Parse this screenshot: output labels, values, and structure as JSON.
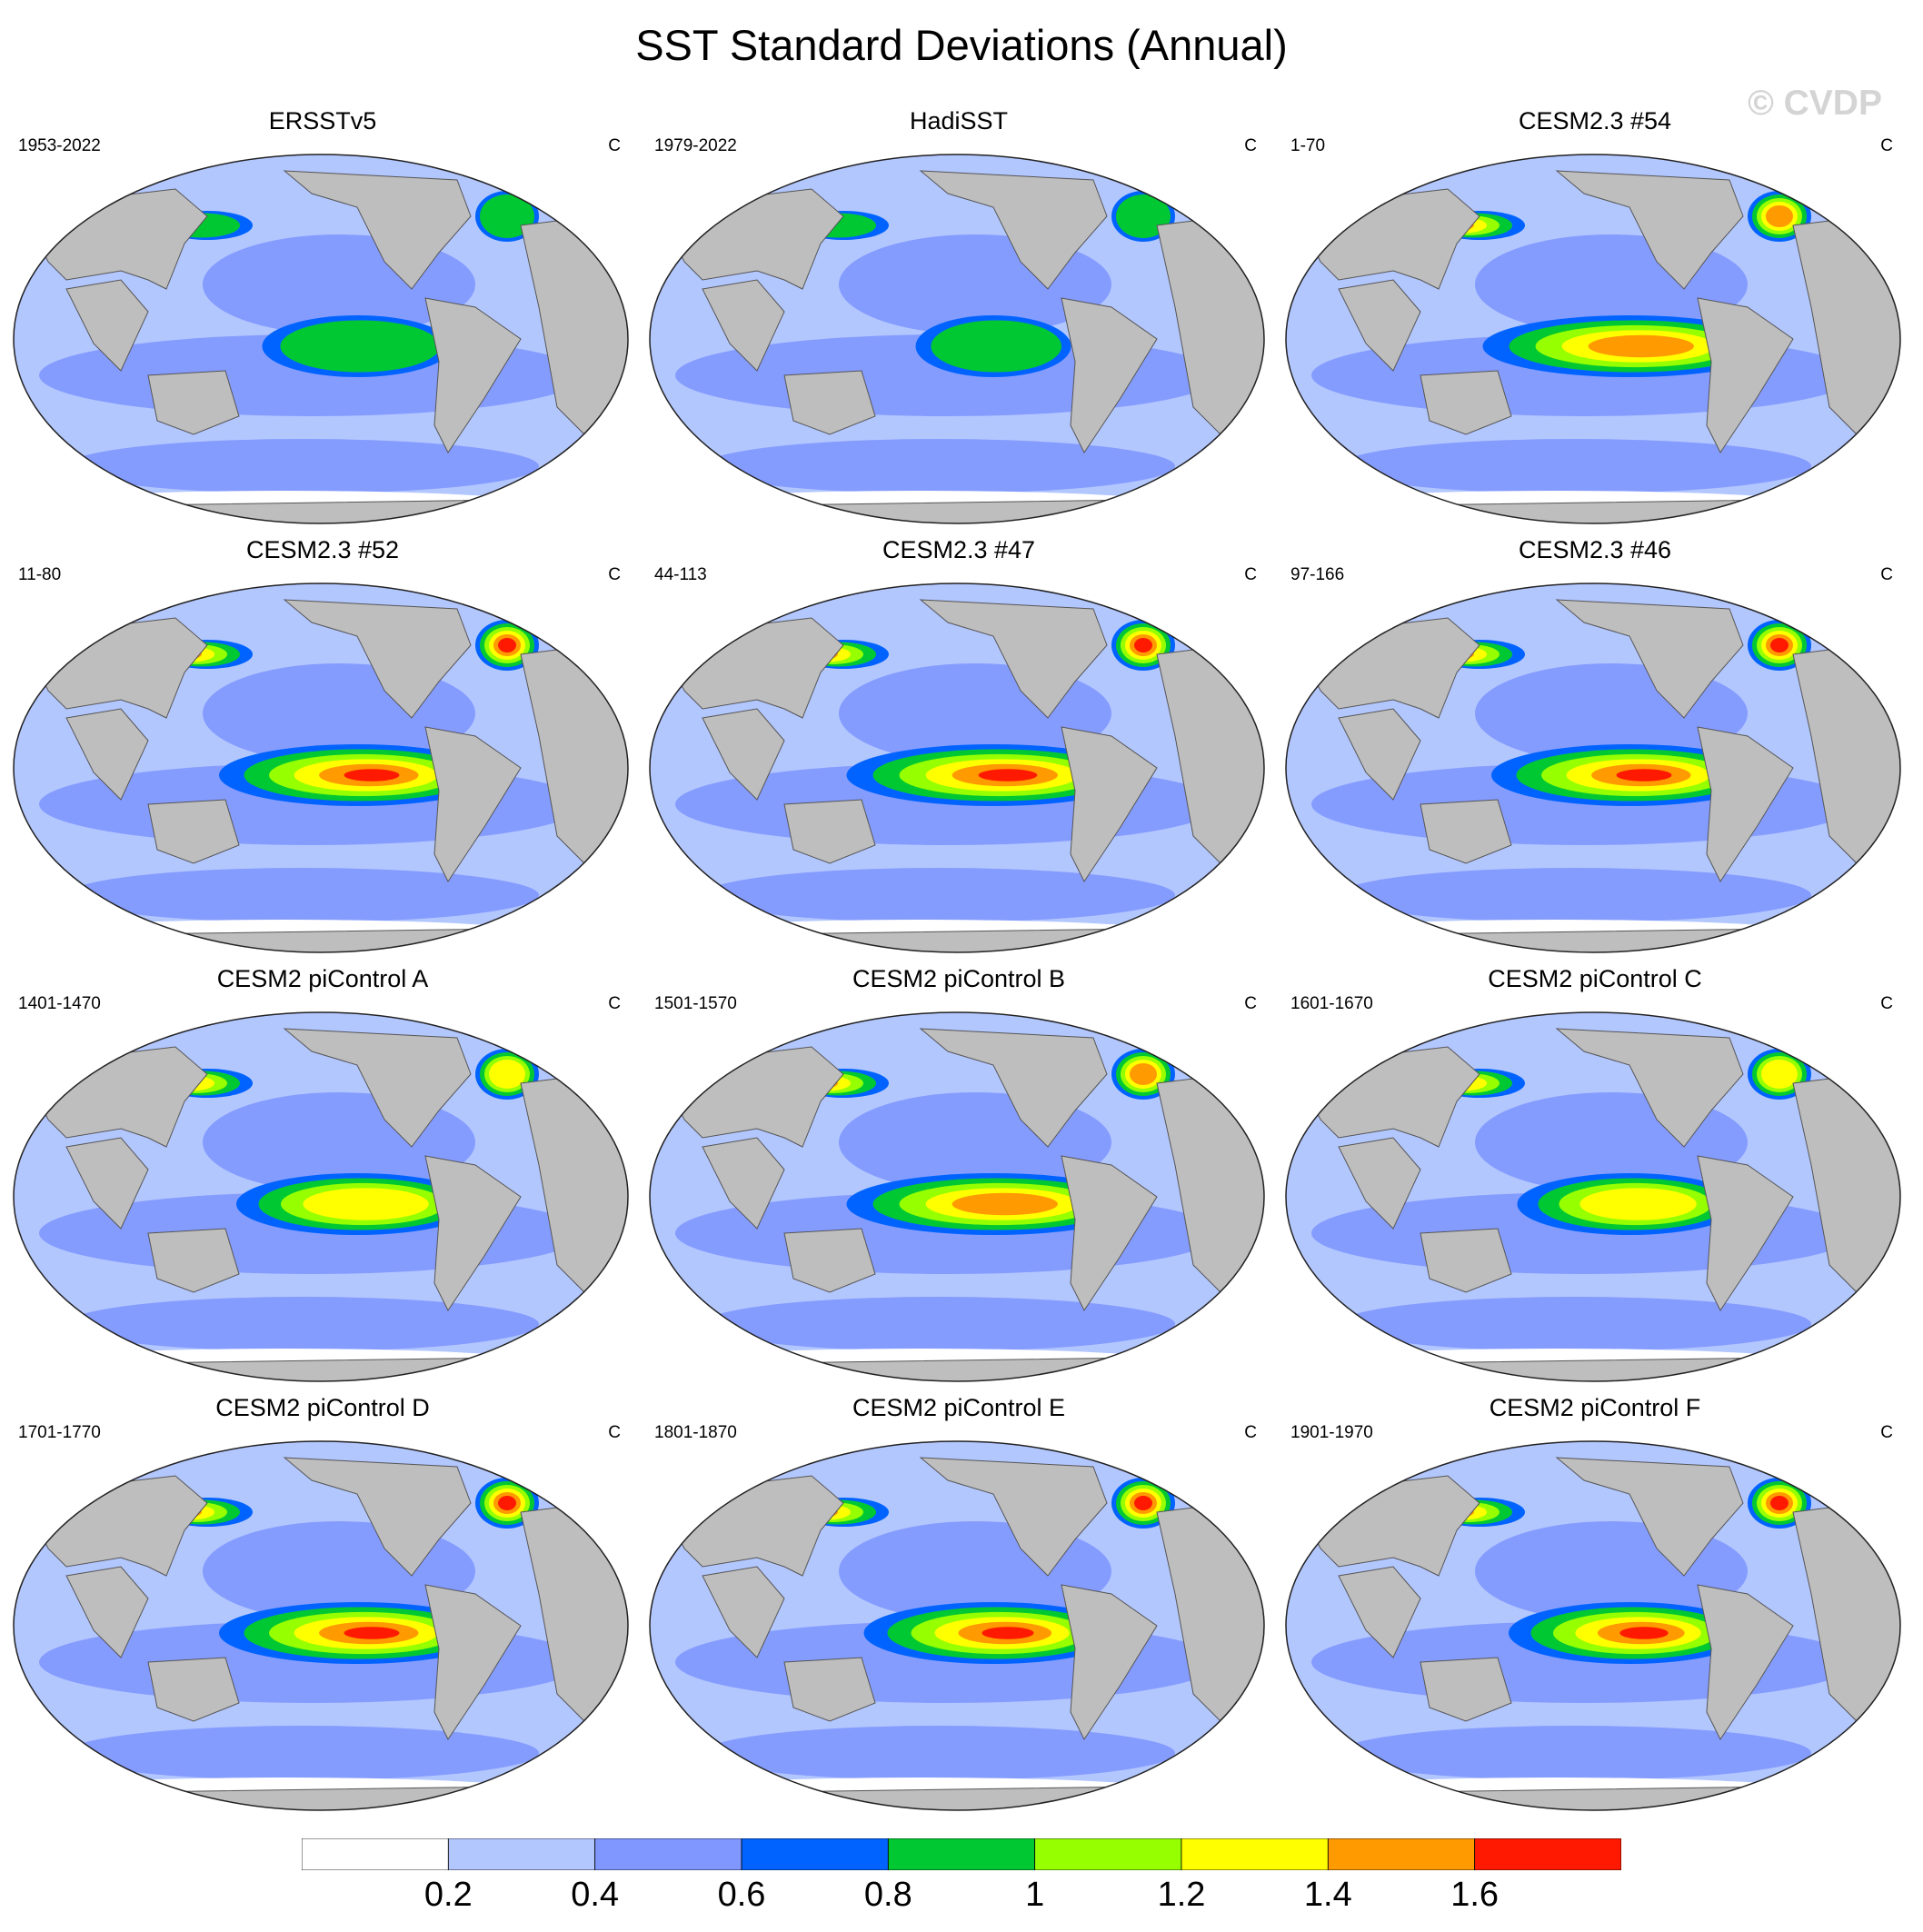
{
  "title": "SST Standard Deviations (Annual)",
  "watermark": "© CVDP",
  "units": "C",
  "panels": [
    {
      "title": "ERSSTv5",
      "period": "1953-2022",
      "units": "C",
      "peak": 0.8,
      "nino_extent": 0.55
    },
    {
      "title": "HadiSST",
      "period": "1979-2022",
      "units": "C",
      "peak": 0.8,
      "nino_extent": 0.45
    },
    {
      "title": "CESM2.3 #54",
      "period": "1-70",
      "units": "C",
      "peak": 1.4,
      "nino_extent": 0.85
    },
    {
      "title": "CESM2.3 #52",
      "period": "11-80",
      "units": "C",
      "peak": 1.6,
      "nino_extent": 0.8
    },
    {
      "title": "CESM2.3 #47",
      "period": "44-113",
      "units": "C",
      "peak": 1.6,
      "nino_extent": 0.85
    },
    {
      "title": "CESM2.3 #46",
      "period": "97-166",
      "units": "C",
      "peak": 1.6,
      "nino_extent": 0.8
    },
    {
      "title": "CESM2 piControl A",
      "period": "1401-1470",
      "units": "C",
      "peak": 1.2,
      "nino_extent": 0.7
    },
    {
      "title": "CESM2 piControl B",
      "period": "1501-1570",
      "units": "C",
      "peak": 1.4,
      "nino_extent": 0.85
    },
    {
      "title": "CESM2 piControl C",
      "period": "1601-1670",
      "units": "C",
      "peak": 1.2,
      "nino_extent": 0.65
    },
    {
      "title": "CESM2 piControl D",
      "period": "1701-1770",
      "units": "C",
      "peak": 1.6,
      "nino_extent": 0.8
    },
    {
      "title": "CESM2 piControl E",
      "period": "1801-1870",
      "units": "C",
      "peak": 1.6,
      "nino_extent": 0.75
    },
    {
      "title": "CESM2 piControl F",
      "period": "1901-1970",
      "units": "C",
      "peak": 1.6,
      "nino_extent": 0.7
    }
  ],
  "colorbar": {
    "colors": [
      "#ffffff",
      "#b3c7ff",
      "#8097ff",
      "#0063ff",
      "#00c832",
      "#96ff00",
      "#ffff00",
      "#ff9a00",
      "#ff1900"
    ],
    "labels": [
      "0.2",
      "0.4",
      "0.6",
      "0.8",
      "1",
      "1.2",
      "1.4",
      "1.6"
    ]
  },
  "colors": {
    "land": "#bebebe",
    "coast": "#555555"
  }
}
